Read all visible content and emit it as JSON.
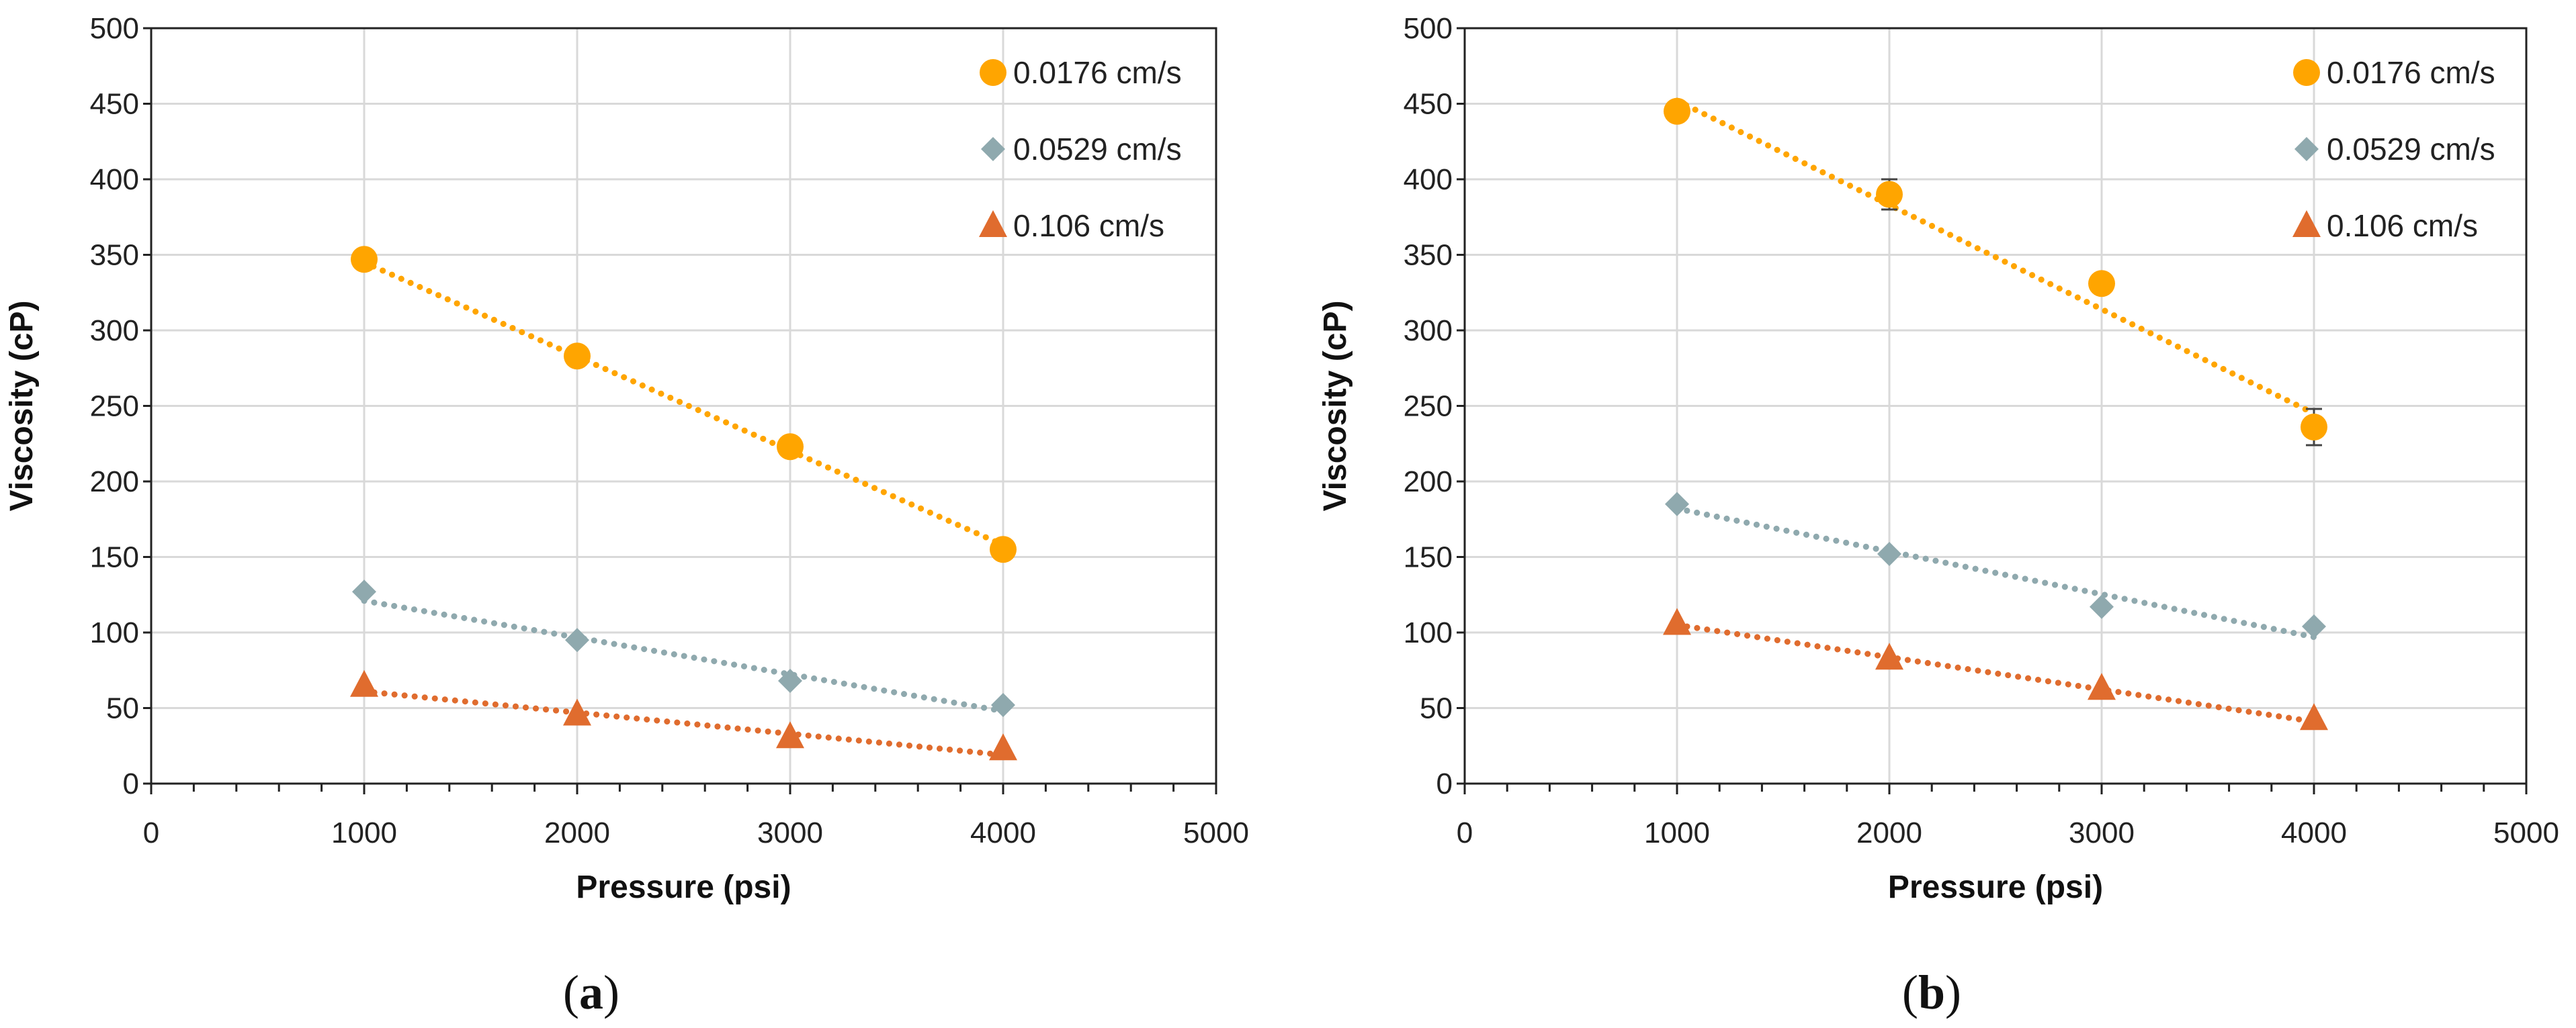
{
  "chart_data": [
    {
      "type": "scatter",
      "panel_label": "a",
      "title": "",
      "xlabel": "Pressure (psi)",
      "ylabel": "Viscosity (cP)",
      "xlim": [
        0,
        5000
      ],
      "ylim": [
        0,
        500
      ],
      "xticks": [
        0,
        1000,
        2000,
        3000,
        4000,
        5000
      ],
      "yticks": [
        0,
        50,
        100,
        150,
        200,
        250,
        300,
        350,
        400,
        450,
        500
      ],
      "grid": true,
      "legend_position": "top-right",
      "series": [
        {
          "name": "0.0176 cm/s",
          "marker": "circle",
          "color": "#FFA500",
          "x": [
            1000,
            2000,
            3000,
            4000
          ],
          "y": [
            347,
            283,
            223,
            155
          ],
          "trendline": [
            [
              1000,
              345
            ],
            [
              4000,
              158
            ]
          ]
        },
        {
          "name": "0.0529 cm/s",
          "marker": "diamond",
          "color": "#8FA9AE",
          "x": [
            1000,
            2000,
            3000,
            4000
          ],
          "y": [
            127,
            95,
            68,
            52
          ],
          "trendline": [
            [
              1000,
              121
            ],
            [
              4000,
              48
            ]
          ]
        },
        {
          "name": "0.106 cm/s",
          "marker": "triangle",
          "color": "#E06C2E",
          "x": [
            1000,
            2000,
            3000,
            4000
          ],
          "y": [
            65,
            46,
            31,
            23
          ],
          "trendline": [
            [
              1000,
              61
            ],
            [
              4000,
              19
            ]
          ]
        }
      ]
    },
    {
      "type": "scatter",
      "panel_label": "b",
      "title": "",
      "xlabel": "Pressure (psi)",
      "ylabel": "Viscosity (cP)",
      "xlim": [
        0,
        5000
      ],
      "ylim": [
        0,
        500
      ],
      "xticks": [
        0,
        1000,
        2000,
        3000,
        4000,
        5000
      ],
      "yticks": [
        0,
        50,
        100,
        150,
        200,
        250,
        300,
        350,
        400,
        450,
        500
      ],
      "grid": true,
      "legend_position": "top-right",
      "series": [
        {
          "name": "0.0176 cm/s",
          "marker": "circle",
          "color": "#FFA500",
          "x": [
            1000,
            2000,
            3000,
            4000
          ],
          "y": [
            445,
            390,
            331,
            236
          ],
          "error": [
            4,
            10,
            5,
            12
          ],
          "trendline": [
            [
              1000,
              452
            ],
            [
              4000,
              245
            ]
          ]
        },
        {
          "name": "0.0529 cm/s",
          "marker": "diamond",
          "color": "#8FA9AE",
          "x": [
            1000,
            2000,
            3000,
            4000
          ],
          "y": [
            185,
            152,
            117,
            104
          ],
          "trendline": [
            [
              1000,
              182
            ],
            [
              4000,
              97
            ]
          ]
        },
        {
          "name": "0.106 cm/s",
          "marker": "triangle",
          "color": "#E06C2E",
          "x": [
            1000,
            2000,
            3000,
            4000
          ],
          "y": [
            106,
            83,
            63,
            43
          ],
          "trendline": [
            [
              1000,
              105
            ],
            [
              4000,
              41
            ]
          ]
        }
      ]
    }
  ],
  "captions": {
    "a": {
      "open": "(",
      "letter": "a",
      "close": ")"
    },
    "b": {
      "open": "(",
      "letter": "b",
      "close": ")"
    }
  }
}
